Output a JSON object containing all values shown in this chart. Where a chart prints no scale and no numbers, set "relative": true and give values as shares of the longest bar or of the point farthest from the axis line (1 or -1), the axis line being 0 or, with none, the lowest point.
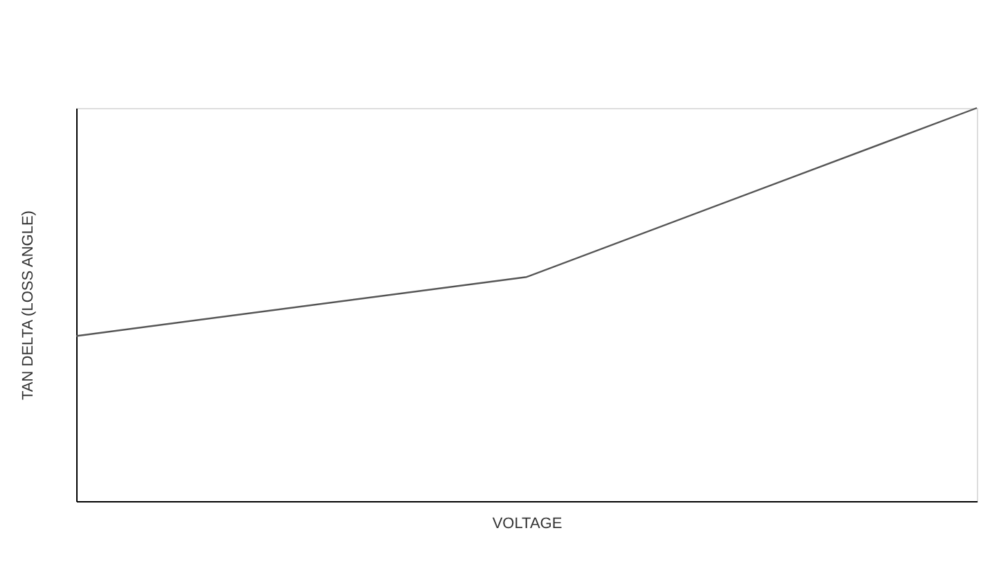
{
  "chart_data": {
    "type": "line",
    "relative": true,
    "xlabel": "VOLTAGE",
    "ylabel": "TAN DELTA (LOSS ANGLE)",
    "categories": [
      null,
      null,
      null
    ],
    "series": [
      {
        "color": "#555555",
        "values": [
          0.42,
          0.57,
          1
        ]
      }
    ],
    "tick_labels": false,
    "grid": false,
    "marker": "none",
    "line_style": "solid"
  }
}
